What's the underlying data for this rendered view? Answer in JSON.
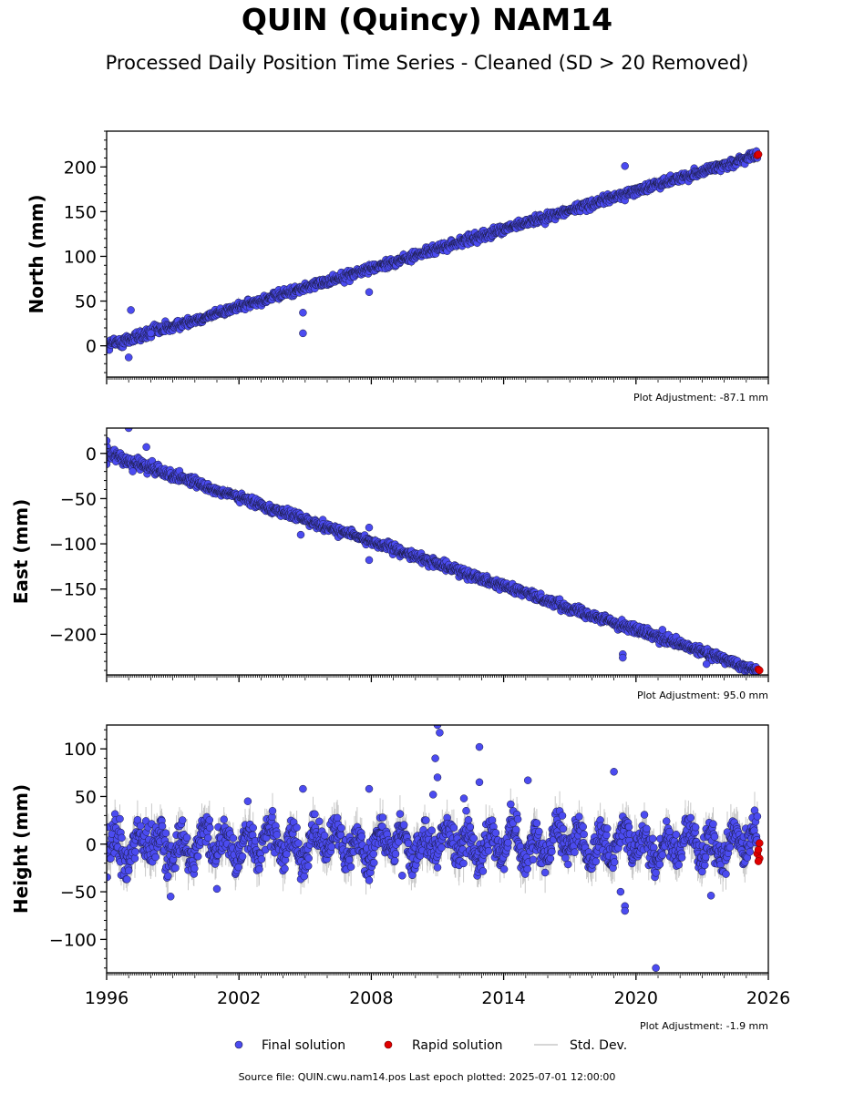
{
  "title": "QUIN (Quincy) NAM14",
  "subtitle": "Processed Daily Position Time Series - Cleaned (SD > 20 Removed)",
  "source_note": "Source file: QUIN.cwu.nam14.pos  Last epoch plotted: 2025-07-01 12:00:00",
  "colors": {
    "final": "#4b4bf0",
    "rapid": "#e00000",
    "stddev": "#c8c8c8",
    "edge": "#1a1a40"
  },
  "legend": {
    "final_label": "Final solution",
    "rapid_label": "Rapid solution",
    "stddev_label": "Std. Dev.",
    "placement": "bottom-center"
  },
  "chart_data": [
    {
      "type": "scatter",
      "panel": "north",
      "ylabel": "North (mm)",
      "adjustment_label": "Plot Adjustment: -87.1 mm",
      "xlim": [
        1996,
        2026
      ],
      "ylim": [
        -35,
        240
      ],
      "yticks": [
        0,
        50,
        100,
        150,
        200
      ],
      "xticks": [
        1996,
        2002,
        2008,
        2014,
        2020,
        2026
      ],
      "trend": {
        "start": [
          1996,
          0
        ],
        "end": [
          2025.5,
          213
        ]
      },
      "noise_mm": 2.5,
      "outliers": [
        [
          1997.1,
          40
        ],
        [
          1997.0,
          -13
        ],
        [
          2004.9,
          14
        ],
        [
          2004.9,
          37
        ],
        [
          2007.9,
          60
        ],
        [
          2019.5,
          201
        ],
        [
          1998.0,
          14
        ]
      ],
      "rapid": [
        [
          2025.5,
          213
        ],
        [
          2025.55,
          214
        ]
      ],
      "series": [
        {
          "name": "Final solution"
        },
        {
          "name": "Rapid solution"
        },
        {
          "name": "Std. Dev."
        }
      ]
    },
    {
      "type": "scatter",
      "panel": "east",
      "ylabel": "East (mm)",
      "adjustment_label": "Plot Adjustment: 95.0 mm",
      "xlim": [
        1996,
        2026
      ],
      "ylim": [
        -245,
        28
      ],
      "yticks": [
        0,
        -50,
        -100,
        -150,
        -200
      ],
      "xticks": [
        1996,
        2002,
        2008,
        2014,
        2020,
        2026
      ],
      "trend": {
        "start": [
          1996,
          0
        ],
        "end": [
          2025.5,
          -240
        ]
      },
      "noise_mm": 2.5,
      "outliers": [
        [
          1997.0,
          28
        ],
        [
          1996.0,
          14
        ],
        [
          1996.0,
          -12
        ],
        [
          1997.8,
          7
        ],
        [
          2004.8,
          -90
        ],
        [
          2007.9,
          -82
        ],
        [
          2007.9,
          -118
        ],
        [
          2019.4,
          -222
        ],
        [
          2019.4,
          -226
        ],
        [
          2021.2,
          -195
        ],
        [
          2023.2,
          -233
        ]
      ],
      "rapid": [
        [
          2025.55,
          -239
        ],
        [
          2025.6,
          -240
        ]
      ],
      "series": [
        {
          "name": "Final solution"
        },
        {
          "name": "Rapid solution"
        },
        {
          "name": "Std. Dev."
        }
      ]
    },
    {
      "type": "scatter",
      "panel": "height",
      "ylabel": "Height (mm)",
      "adjustment_label": "Plot Adjustment: -1.9 mm",
      "xlim": [
        1996,
        2026
      ],
      "ylim": [
        -135,
        125
      ],
      "yticks": [
        100,
        50,
        0,
        -50,
        -100
      ],
      "xticks": [
        1996,
        2002,
        2008,
        2014,
        2020,
        2026
      ],
      "trend": {
        "start": [
          1996,
          0
        ],
        "end": [
          2025.5,
          0
        ]
      },
      "seasonal_amplitude_mm": 14,
      "noise_mm": 9,
      "outliers": [
        [
          2011.0,
          125
        ],
        [
          2011.1,
          117
        ],
        [
          2010.9,
          90
        ],
        [
          2011.0,
          70
        ],
        [
          2010.8,
          52
        ],
        [
          2012.9,
          102
        ],
        [
          2012.9,
          65
        ],
        [
          2012.2,
          48
        ],
        [
          2012.3,
          35
        ],
        [
          2015.1,
          67
        ],
        [
          2019.0,
          76
        ],
        [
          2019.3,
          -50
        ],
        [
          2019.5,
          -65
        ],
        [
          2019.5,
          -70
        ],
        [
          2020.9,
          -130
        ],
        [
          2004.9,
          58
        ],
        [
          2007.9,
          58
        ],
        [
          2007.9,
          -38
        ],
        [
          1998.9,
          -55
        ],
        [
          2001.0,
          -47
        ],
        [
          2002.4,
          45
        ],
        [
          2009.4,
          -33
        ],
        [
          2023.4,
          -54
        ]
      ],
      "rapid": [
        [
          2025.5,
          -10
        ],
        [
          2025.55,
          -6
        ],
        [
          2025.6,
          1
        ],
        [
          2025.6,
          -15
        ],
        [
          2025.55,
          -18
        ]
      ],
      "series": [
        {
          "name": "Final solution"
        },
        {
          "name": "Rapid solution"
        },
        {
          "name": "Std. Dev."
        }
      ]
    }
  ]
}
